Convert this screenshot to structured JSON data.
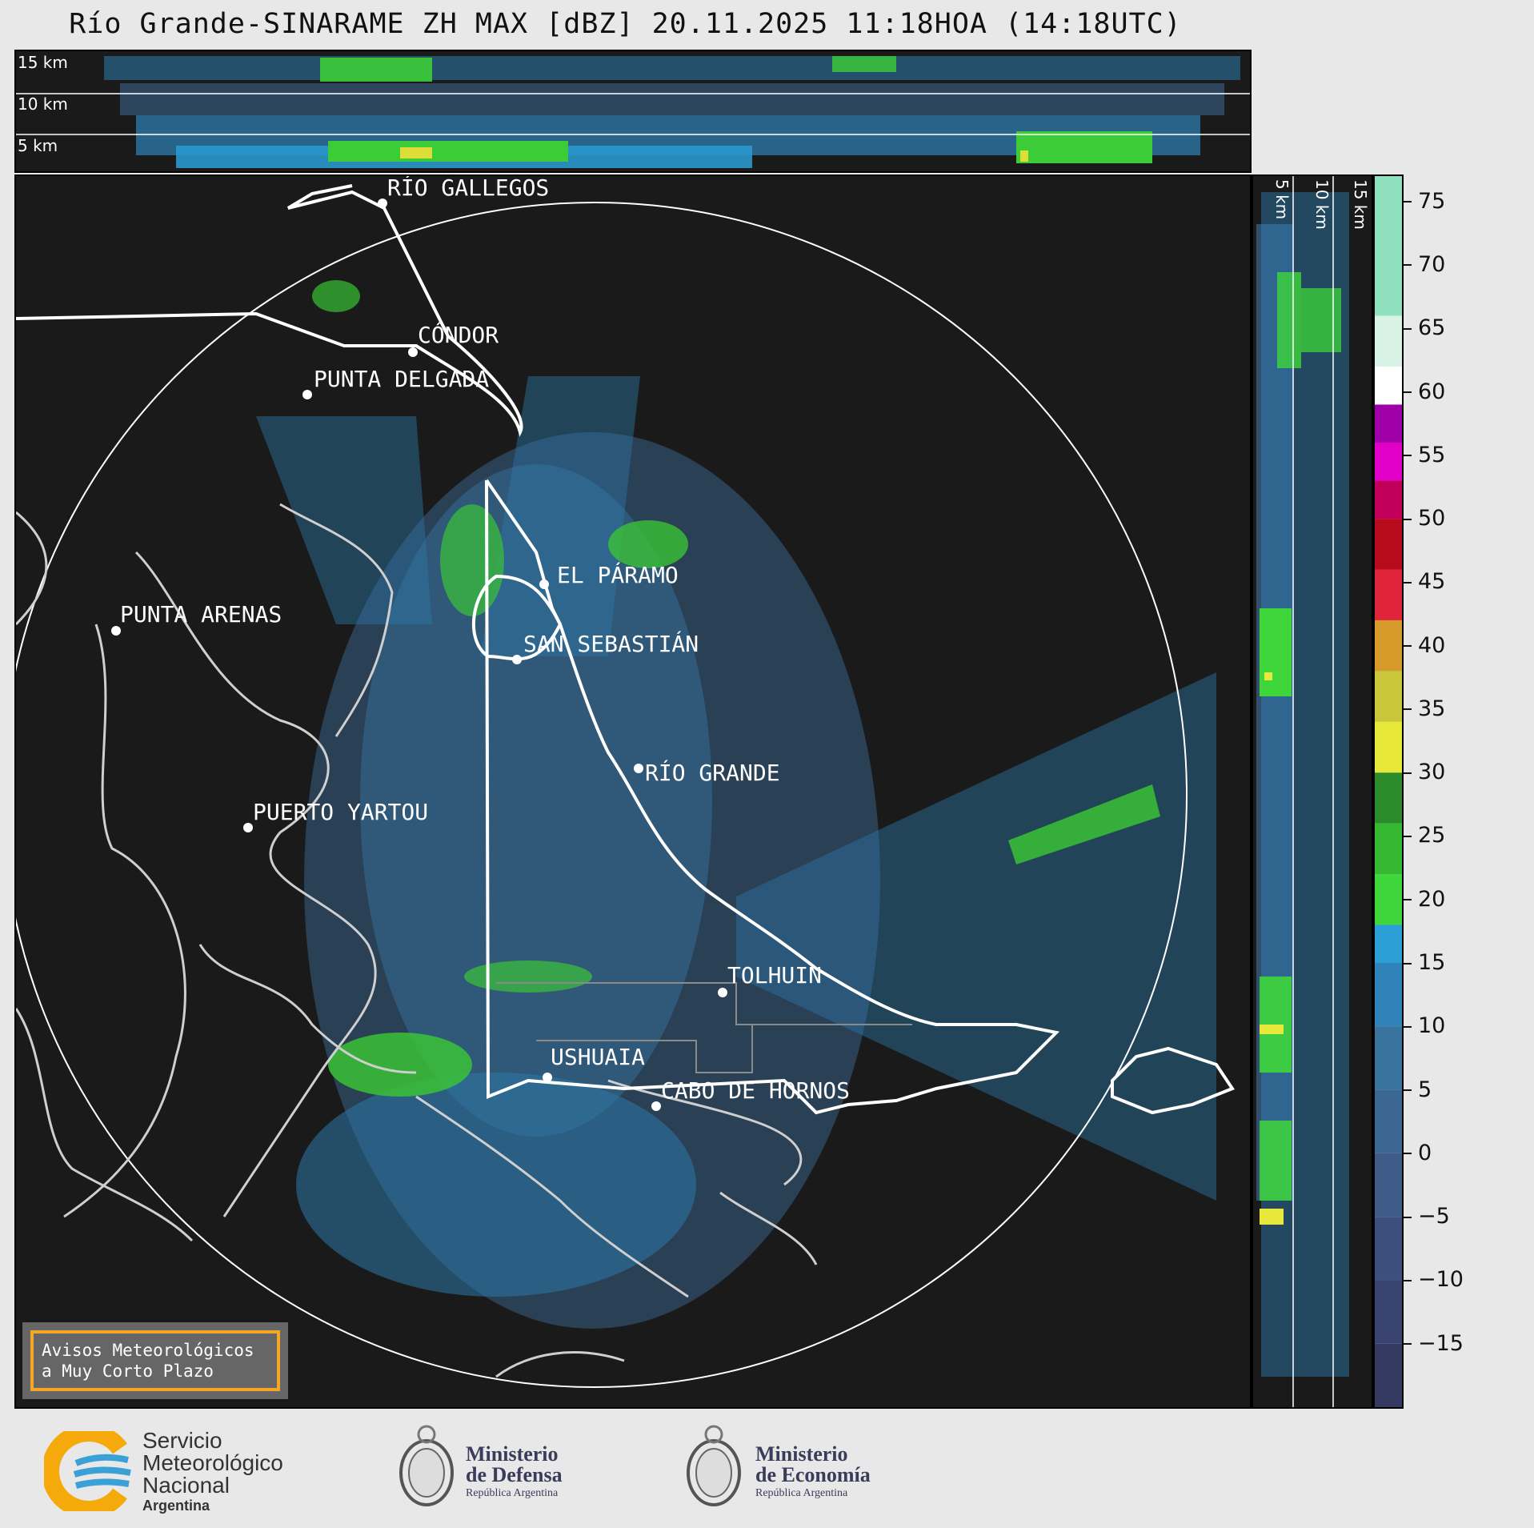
{
  "title": "Río Grande-SINARAME ZH MAX [dBZ] 20.11.2025 11:18HOA (14:18UTC)",
  "top_panel": {
    "altitude_labels": [
      "15 km",
      "10 km",
      "5 km"
    ]
  },
  "side_panel": {
    "altitude_labels": [
      "5 km",
      "10 km",
      "15 km"
    ]
  },
  "cities": [
    {
      "name": "RÍO GALLEGOS"
    },
    {
      "name": "CÓNDOR"
    },
    {
      "name": "PUNTA DELGADA"
    },
    {
      "name": "EL PÁRAMO"
    },
    {
      "name": "PUNTA ARENAS"
    },
    {
      "name": "SAN SEBASTIÁN"
    },
    {
      "name": "RÍO GRANDE"
    },
    {
      "name": "PUERTO YARTOU"
    },
    {
      "name": "TOLHUIN"
    },
    {
      "name": "USHUAIA"
    },
    {
      "name": "CABO DE HORNOS"
    }
  ],
  "colorbar": {
    "unit": "dBZ",
    "ticks": [
      "75",
      "70",
      "65",
      "60",
      "55",
      "50",
      "45",
      "40",
      "35",
      "30",
      "25",
      "20",
      "15",
      "10",
      "5",
      "0",
      "−5",
      "−10",
      "−15"
    ],
    "range": [
      -20,
      77
    ],
    "bands": [
      {
        "from": -20,
        "to": -15,
        "color": "#353a63"
      },
      {
        "from": -15,
        "to": -10,
        "color": "#3a4470"
      },
      {
        "from": -10,
        "to": -5,
        "color": "#3d4f7c"
      },
      {
        "from": -5,
        "to": 0,
        "color": "#3f5b88"
      },
      {
        "from": 0,
        "to": 5,
        "color": "#3c6792"
      },
      {
        "from": 5,
        "to": 10,
        "color": "#37739d"
      },
      {
        "from": 10,
        "to": 15,
        "color": "#2f83b8"
      },
      {
        "from": 15,
        "to": 18,
        "color": "#2b9fd6"
      },
      {
        "from": 18,
        "to": 22,
        "color": "#3ed63a"
      },
      {
        "from": 22,
        "to": 26,
        "color": "#36b832"
      },
      {
        "from": 26,
        "to": 30,
        "color": "#2b8a2a"
      },
      {
        "from": 30,
        "to": 34,
        "color": "#e8e83a"
      },
      {
        "from": 34,
        "to": 38,
        "color": "#c9c63a"
      },
      {
        "from": 38,
        "to": 42,
        "color": "#d69a2a"
      },
      {
        "from": 42,
        "to": 46,
        "color": "#e0243a"
      },
      {
        "from": 46,
        "to": 50,
        "color": "#b80c1c"
      },
      {
        "from": 50,
        "to": 53,
        "color": "#c2005c"
      },
      {
        "from": 53,
        "to": 56,
        "color": "#e000c8"
      },
      {
        "from": 56,
        "to": 59,
        "color": "#a000a8"
      },
      {
        "from": 59,
        "to": 62,
        "color": "#ffffff"
      },
      {
        "from": 62,
        "to": 66,
        "color": "#d8f3e6"
      },
      {
        "from": 66,
        "to": 77,
        "color": "#8fe0bd"
      }
    ]
  },
  "alert_box": {
    "line1": "Avisos Meteorológicos",
    "line2": "a Muy Corto Plazo"
  },
  "logos": {
    "smn": {
      "line1": "Servicio",
      "line2": "Meteorológico",
      "line3": "Nacional",
      "line4": "Argentina"
    },
    "defensa": {
      "line1": "Ministerio",
      "line2": "de Defensa",
      "line3": "República Argentina"
    },
    "economia": {
      "line1": "Ministerio",
      "line2": "de Economía",
      "line3": "República Argentina"
    }
  },
  "colors": {
    "background": "#1a1a1a",
    "echo_weak": "#2f83b8",
    "echo_moderate": "#3ed63a",
    "coast": "#cfcfcf",
    "border": "#ffffff"
  }
}
